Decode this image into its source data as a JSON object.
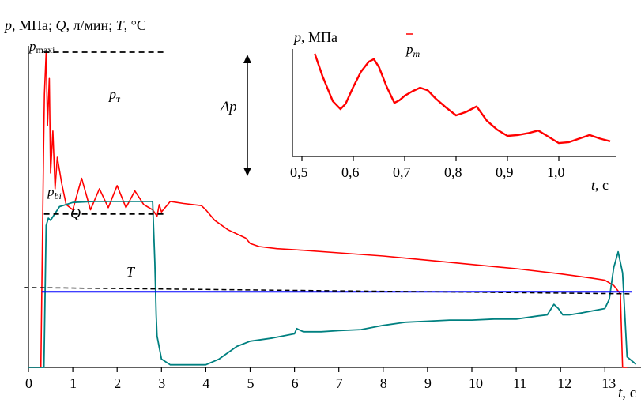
{
  "chart_data": [
    {
      "type": "line",
      "title": "",
      "ylabel": {
        "p": "p",
        "p_unit": ", МПа; ",
        "Q": "Q",
        "Q_unit": ", л/мин; ",
        "T": "T",
        "T_unit": ", °C"
      },
      "xlabel": {
        "t": "t",
        "unit": ", c"
      },
      "x_ticks": [
        "0",
        "1",
        "2",
        "3",
        "4",
        "5",
        "6",
        "7",
        "8",
        "9",
        "10",
        "11",
        "12",
        "13"
      ],
      "xlim": [
        0,
        13.7
      ],
      "grid": false,
      "annotations": {
        "p_max": "p",
        "p_max_sub": "maxi",
        "p_b": "p",
        "p_b_sub": "bi",
        "delta_p": "Δp",
        "p_t": "p",
        "p_t_sub": "т",
        "Q": "Q",
        "T": "T"
      },
      "colors": {
        "pressure": "#ff0000",
        "flow": "#008080",
        "temperature": "#0000ff",
        "reference": "#000000"
      },
      "series": [
        {
          "key": "pressure",
          "x": [
            0,
            0.28,
            0.34,
            0.36,
            0.4,
            0.43,
            0.47,
            0.5,
            0.55,
            0.6,
            0.65,
            0.75,
            0.85,
            1.0,
            1.2,
            1.4,
            1.6,
            1.8,
            2.0,
            2.2,
            2.4,
            2.6,
            2.8,
            2.9,
            2.95,
            3.0,
            3.2,
            3.5,
            3.9,
            4.0,
            4.2,
            4.5,
            4.9,
            5.0,
            5.2,
            5.6,
            6.0,
            7.0,
            8.0,
            9.0,
            10.0,
            11.0,
            12.0,
            12.7,
            13.0,
            13.2,
            13.35,
            13.4,
            13.5
          ],
          "y": [
            0,
            0,
            20.5,
            26.0,
            30.0,
            23.0,
            27.5,
            18.5,
            22.5,
            17.0,
            20.0,
            17.5,
            15.5,
            15.0,
            18.0,
            15.0,
            17.0,
            15.2,
            17.3,
            15.2,
            16.8,
            15.5,
            15.0,
            14.4,
            15.5,
            14.8,
            15.8,
            15.6,
            15.4,
            15.0,
            14.0,
            13.1,
            12.3,
            11.8,
            11.5,
            11.3,
            11.2,
            10.9,
            10.6,
            10.2,
            9.8,
            9.4,
            8.9,
            8.5,
            8.3,
            7.8,
            7.0,
            0,
            0
          ]
        },
        {
          "key": "flow",
          "x": [
            0,
            0.35,
            0.4,
            0.45,
            0.5,
            0.7,
            1.0,
            1.5,
            2.0,
            2.5,
            2.8,
            2.85,
            2.88,
            2.9,
            3.0,
            3.2,
            3.5,
            3.8,
            4.0,
            4.3,
            4.7,
            5.0,
            5.5,
            6.0,
            6.05,
            6.2,
            6.6,
            7.0,
            7.5,
            8.0,
            8.5,
            9.0,
            9.5,
            10.0,
            10.5,
            11.0,
            11.5,
            11.7,
            11.85,
            11.95,
            12.05,
            12.2,
            12.5,
            13.0,
            13.1,
            13.2,
            13.3,
            13.4,
            13.5,
            13.7
          ],
          "y": [
            0,
            0,
            13.5,
            14.2,
            14.0,
            15.3,
            15.7,
            15.8,
            15.8,
            15.8,
            15.8,
            10.0,
            5.0,
            3.0,
            0.8,
            0.25,
            0.25,
            0.25,
            0.25,
            0.8,
            2.0,
            2.5,
            2.8,
            3.2,
            3.7,
            3.4,
            3.4,
            3.5,
            3.6,
            4.0,
            4.3,
            4.4,
            4.5,
            4.5,
            4.6,
            4.6,
            4.9,
            5.0,
            6.0,
            5.6,
            5.0,
            5.0,
            5.2,
            5.6,
            6.5,
            9.5,
            11.0,
            9.0,
            1.0,
            0.3
          ]
        },
        {
          "key": "temperature",
          "x": [
            0.3,
            13.6
          ],
          "y": [
            7.2,
            7.2
          ]
        },
        {
          "key": "t_reference",
          "x": [
            -0.1,
            13.6
          ],
          "y": [
            7.6,
            7.0
          ]
        },
        {
          "key": "p_max_level",
          "x": [
            0.35,
            3.1
          ],
          "y": [
            30.0,
            30.0
          ]
        },
        {
          "key": "p_b_level",
          "x": [
            0.35,
            3.1
          ],
          "y": [
            14.6,
            14.6
          ]
        }
      ]
    },
    {
      "type": "line",
      "title": "",
      "ylabel": {
        "p": "p",
        "unit": ", МПа"
      },
      "xlabel": {
        "t": "t",
        "unit": ", с"
      },
      "x_ticks": [
        "0,5",
        "0,6",
        "0,7",
        "0,8",
        "0,9",
        "1,0"
      ],
      "xlim": [
        0.5,
        1.1
      ],
      "grid": false,
      "annotations": {
        "p_m": "p",
        "p_m_sub": "m"
      },
      "colors": {
        "pressure": "#ff0000"
      },
      "series": [
        {
          "key": "pressure_detail",
          "x": [
            0.525,
            0.54,
            0.56,
            0.575,
            0.585,
            0.6,
            0.615,
            0.63,
            0.64,
            0.65,
            0.665,
            0.68,
            0.69,
            0.7,
            0.715,
            0.73,
            0.745,
            0.76,
            0.78,
            0.8,
            0.82,
            0.84,
            0.86,
            0.88,
            0.9,
            0.92,
            0.94,
            0.96,
            0.98,
            1.0,
            1.02,
            1.04,
            1.06,
            1.08,
            1.1
          ],
          "y": [
            21.5,
            19.0,
            16.2,
            15.3,
            15.9,
            17.8,
            19.5,
            20.6,
            20.9,
            20.0,
            17.8,
            16.0,
            16.3,
            16.8,
            17.3,
            17.7,
            17.4,
            16.5,
            15.5,
            14.6,
            15.0,
            15.6,
            14.0,
            13.0,
            12.3,
            12.4,
            12.6,
            12.9,
            12.2,
            11.5,
            11.6,
            12.0,
            12.4,
            12.0,
            11.7
          ]
        }
      ]
    }
  ]
}
